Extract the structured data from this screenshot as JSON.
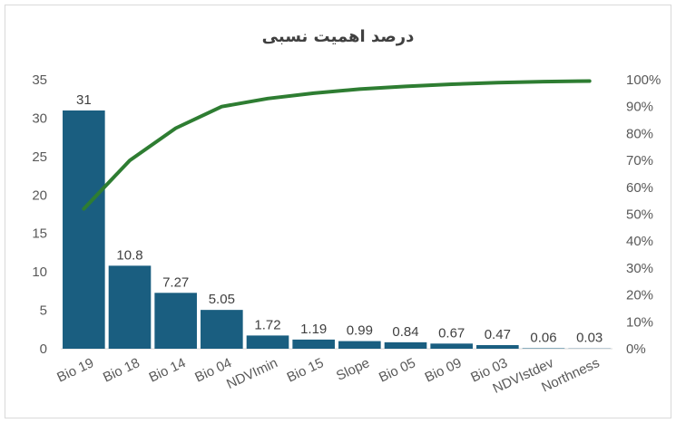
{
  "chart_data": {
    "type": "bar",
    "title": "درصد اهمیت نسبی",
    "categories": [
      "Bio 19",
      "Bio 18",
      "Bio 14",
      "Bio 04",
      "NDVImin",
      "Bio 15",
      "Slope",
      "Bio 05",
      "Bio 09",
      "Bio 03",
      "NDVIstdev",
      "Northness"
    ],
    "series": [
      {
        "values": [
          31,
          10.8,
          7.27,
          5.05,
          1.72,
          1.19,
          0.99,
          0.84,
          0.67,
          0.47,
          0.06,
          0.03
        ],
        "color": "#1a5e80"
      },
      {
        "kind": "cumulative-line",
        "axis": "right",
        "values": [
          52,
          70,
          82,
          90,
          93,
          95,
          96.5,
          97.5,
          98.3,
          98.9,
          99.3,
          99.5
        ],
        "color": "#2e7d32"
      }
    ],
    "data_labels": [
      "31",
      "10.8",
      "7.27",
      "5.05",
      "1.72",
      "1.19",
      "0.99",
      "0.84",
      "0.67",
      "0.47",
      "0.06",
      "0.03"
    ],
    "ylim": [
      0,
      35
    ],
    "y_ticks": [
      "0",
      "5",
      "10",
      "15",
      "20",
      "25",
      "30",
      "35"
    ],
    "y2lim": [
      0,
      100
    ],
    "y2_ticks": [
      "0%",
      "10%",
      "20%",
      "30%",
      "40%",
      "50%",
      "60%",
      "70%",
      "80%",
      "90%",
      "100%"
    ],
    "grid": false,
    "legend": "none"
  }
}
